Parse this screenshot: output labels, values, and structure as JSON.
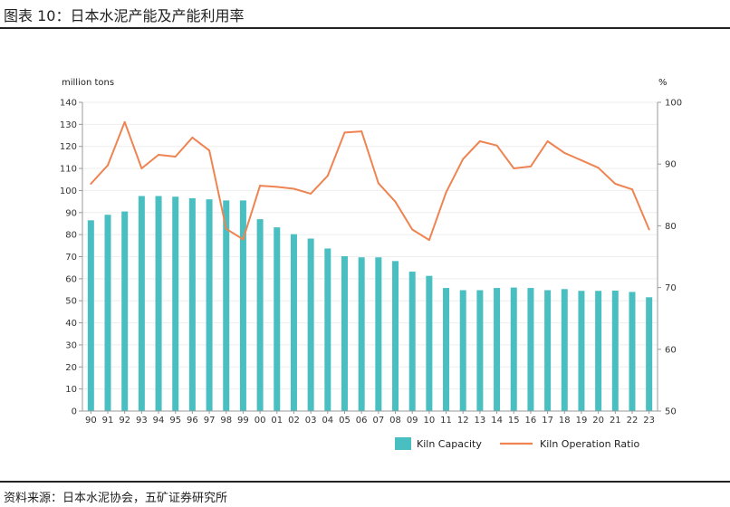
{
  "header": {
    "title": "图表 10：日本水泥产能及产能利用率"
  },
  "footer": {
    "source": "资料来源：日本水泥协会，五矿证券研究所"
  },
  "colors": {
    "bar": "#49BFC2",
    "line": "#EE8452",
    "axis": "#999999",
    "grid": "#eeeeee"
  },
  "chart_data": {
    "type": "bar+line",
    "categories": [
      "90",
      "91",
      "92",
      "93",
      "94",
      "95",
      "96",
      "97",
      "98",
      "99",
      "00",
      "01",
      "02",
      "03",
      "04",
      "05",
      "06",
      "07",
      "08",
      "09",
      "10",
      "11",
      "12",
      "13",
      "14",
      "15",
      "16",
      "17",
      "18",
      "19",
      "20",
      "21",
      "22",
      "23"
    ],
    "series": [
      {
        "name": "Kiln Capacity",
        "type": "bar",
        "axis": "left",
        "values": [
          86.5,
          89,
          90.5,
          97.5,
          97.5,
          97.2,
          96.5,
          96,
          95.5,
          95.5,
          87,
          83.3,
          80.2,
          78.2,
          73.7,
          70.2,
          69.7,
          69.7,
          68,
          63.2,
          61.3,
          55.8,
          54.8,
          54.8,
          55.8,
          56,
          55.8,
          54.8,
          55.3,
          54.5,
          54.5,
          54.6,
          54,
          51.6
        ]
      },
      {
        "name": "Kiln Operation Ratio",
        "type": "line",
        "axis": "right",
        "values": [
          86.8,
          89.8,
          96.8,
          89.3,
          91.5,
          91.2,
          94.3,
          92.2,
          79.5,
          77.8,
          86.5,
          86.3,
          86,
          85.2,
          88.1,
          95.1,
          95.3,
          86.9,
          83.9,
          79.4,
          77.7,
          85.4,
          90.8,
          93.7,
          93,
          89.3,
          89.6,
          93.7,
          91.8,
          90.6,
          89.4,
          86.8,
          85.9,
          79.4
        ]
      }
    ],
    "left_axis": {
      "unit": "million tons",
      "min": 0,
      "max": 140,
      "ticks": [
        "0",
        "10",
        "20",
        "30",
        "40",
        "50",
        "60",
        "70",
        "80",
        "90",
        "100",
        "110",
        "120",
        "130",
        "140"
      ]
    },
    "right_axis": {
      "unit": "%",
      "min": 50,
      "max": 100,
      "ticks": [
        "50",
        "60",
        "70",
        "80",
        "90",
        "100"
      ]
    },
    "legend": [
      "Kiln Capacity",
      "Kiln Operation Ratio"
    ],
    "legend_position": "bottom-right"
  }
}
